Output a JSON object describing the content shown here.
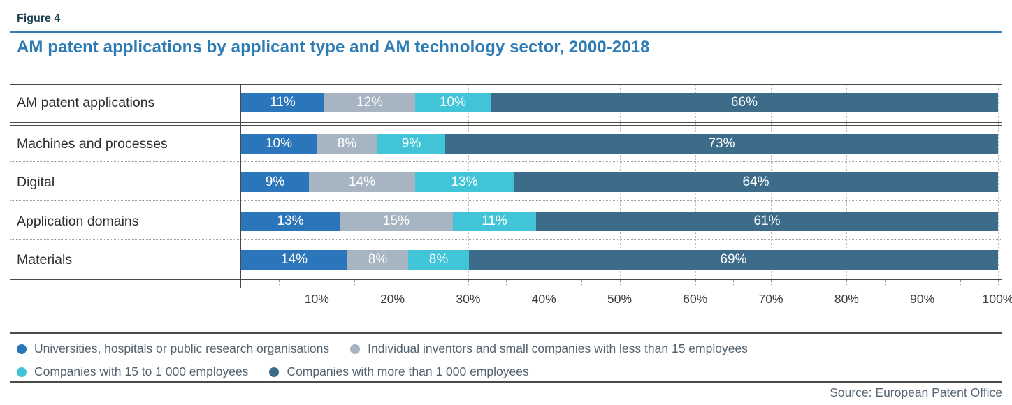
{
  "header": {
    "figure_label": "Figure 4",
    "title": "AM patent applications by applicant type and AM technology sector, 2000-2018"
  },
  "chart_data": {
    "type": "bar",
    "orientation": "horizontal",
    "stacked": true,
    "title": "AM patent applications by applicant type and AM technology sector, 2000-2018",
    "categories": [
      "AM patent applications",
      "Machines and processes",
      "Digital",
      "Application domains",
      "Materials"
    ],
    "series": [
      {
        "name": "Universities, hospitals or public research organisations",
        "color": "#2b76ba",
        "values": [
          11,
          10,
          9,
          13,
          14
        ]
      },
      {
        "name": "Individual inventors and small companies with less than 15 employees",
        "color": "#a7b5c3",
        "values": [
          12,
          8,
          14,
          15,
          8
        ]
      },
      {
        "name": "Companies with 15 to 1 000 employees",
        "color": "#41c4d8",
        "values": [
          10,
          9,
          13,
          11,
          8
        ]
      },
      {
        "name": "Companies with more than 1 000 employees",
        "color": "#3d6c8a",
        "values": [
          66,
          73,
          64,
          61,
          69
        ]
      }
    ],
    "value_label_suffix": "%",
    "x_axis": {
      "min": 0,
      "max": 100,
      "tick_labels": [
        "10%",
        "20%",
        "30%",
        "40%",
        "50%",
        "60%",
        "70%",
        "80%",
        "90%",
        "100%"
      ],
      "minor_tick_step_percent": 5,
      "gridlines": "dotted vertical every 10%"
    },
    "legend_rows": [
      [
        0,
        1
      ],
      [
        2,
        3
      ]
    ],
    "legend_position": "bottom"
  },
  "footer": {
    "source": "Source: European Patent Office"
  }
}
